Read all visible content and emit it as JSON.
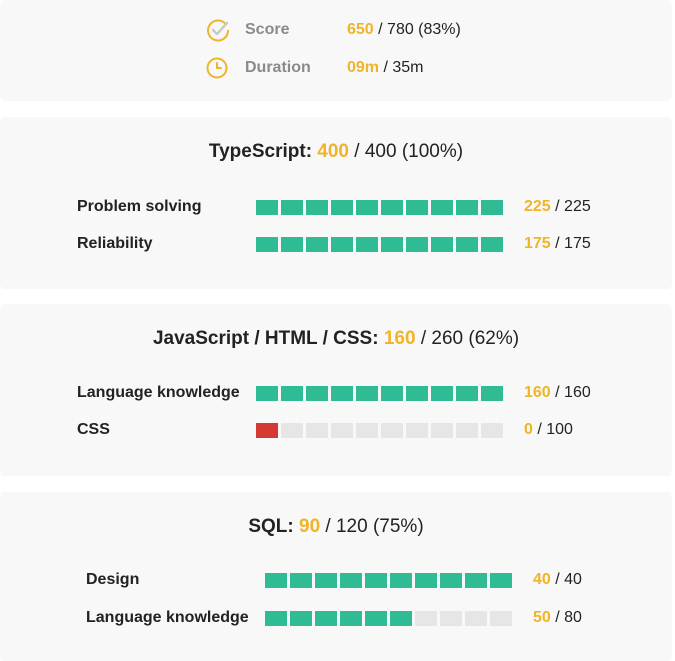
{
  "summary": {
    "score": {
      "icon": "check-circle-icon",
      "label": "Score",
      "value": "650",
      "rest": " / 780 (83%)"
    },
    "duration": {
      "icon": "clock-icon",
      "label": "Duration",
      "value": "09m",
      "rest": " / 35m"
    }
  },
  "colors": {
    "accent": "#f0b429",
    "bar_full": "#2fbb94",
    "bar_empty": "#e6e6e6",
    "bar_fail": "#d43a33",
    "card_bg": "#f8f8f8"
  },
  "sections": [
    {
      "name": "TypeScript:",
      "score": "400",
      "rest": " / 400 (100%)",
      "skills": [
        {
          "label": "Problem solving",
          "score": "225",
          "rest": " / 225",
          "fraction": 1.0
        },
        {
          "label": "Reliability",
          "score": "175",
          "rest": " / 175",
          "fraction": 1.0
        }
      ]
    },
    {
      "name": "JavaScript / HTML / CSS:",
      "score": "160",
      "rest": " / 260 (62%)",
      "skills": [
        {
          "label": "Language knowledge",
          "score": "160",
          "rest": " / 160",
          "fraction": 1.0
        },
        {
          "label": "CSS",
          "score": "0",
          "rest": " / 100",
          "fraction": 0.0
        }
      ]
    },
    {
      "name": "SQL:",
      "score": "90",
      "rest": " / 120 (75%)",
      "skills": [
        {
          "label": "Design",
          "score": "40",
          "rest": " / 40",
          "fraction": 1.0
        },
        {
          "label": "Language knowledge",
          "score": "50",
          "rest": " / 80",
          "fraction": 0.625
        }
      ]
    }
  ]
}
